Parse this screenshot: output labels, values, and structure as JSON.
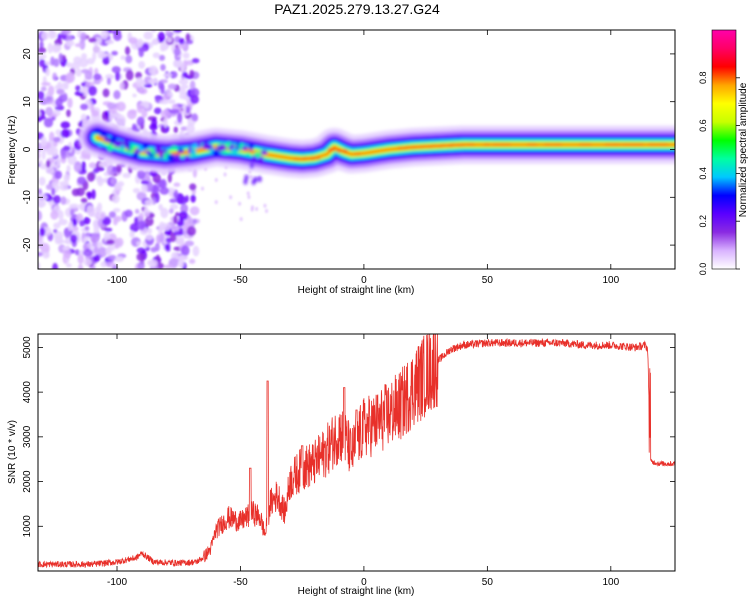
{
  "title": "PAZ1.2025.279.13.27.G24",
  "chart_data": [
    {
      "type": "heatmap",
      "title": "PAZ1.2025.279.13.27.G24",
      "xlabel": "Height of straight line (km)",
      "ylabel": "Frequency (Hz)",
      "xlim": [
        -132,
        126
      ],
      "ylim": [
        -25,
        25
      ],
      "x_ticks": [
        -100,
        -50,
        0,
        50,
        100
      ],
      "x_tick_labels": [
        "-100",
        "-50",
        "0",
        "50",
        "100"
      ],
      "y_ticks": [
        -20,
        -10,
        0,
        10,
        20
      ],
      "y_tick_labels": [
        "-20",
        "-10",
        "0",
        "10",
        "20"
      ],
      "grid": false,
      "colorbar": {
        "label": "Normalized spectral amplitude",
        "range": [
          0,
          1
        ],
        "ticks": [
          0.0,
          0.2,
          0.4,
          0.6,
          0.8
        ],
        "tick_labels": [
          "0.0",
          "0.2",
          "0.4",
          "0.6",
          "0.8"
        ],
        "colors": [
          "#ffffff",
          "#d9b3ff",
          "#8a2be2",
          "#5a00ff",
          "#0000ff",
          "#00c8ff",
          "#00ffa0",
          "#00ff00",
          "#c8ff00",
          "#ffff00",
          "#ffa500",
          "#ff0000",
          "#ff0066",
          "#ff00aa"
        ]
      },
      "ridge_frequency": {
        "x": [
          -108,
          -100,
          -90,
          -80,
          -70,
          -60,
          -50,
          -40,
          -30,
          -25,
          -20,
          -15,
          -12,
          -8,
          -5,
          0,
          10,
          20,
          40,
          60,
          80,
          100,
          126
        ],
        "y": [
          2.5,
          1,
          -0.5,
          -1,
          -0.5,
          0.5,
          0,
          -1,
          -1.8,
          -2,
          -1.8,
          -1,
          0.5,
          -0.5,
          -1,
          -0.8,
          0,
          0.5,
          1,
          1,
          1,
          1,
          1
        ]
      },
      "noise_region_x": [
        -132,
        -68
      ]
    },
    {
      "type": "line",
      "xlabel": "Height of straight line (km)",
      "ylabel": "SNR (10 * v/v)",
      "xlim": [
        -132,
        126
      ],
      "ylim": [
        0,
        5300
      ],
      "x_ticks": [
        -100,
        -50,
        0,
        50,
        100
      ],
      "x_tick_labels": [
        "-100",
        "-50",
        "0",
        "50",
        "100"
      ],
      "y_ticks": [
        1000,
        2000,
        3000,
        4000,
        5000
      ],
      "y_tick_labels": [
        "1000",
        "2000",
        "3000",
        "4000",
        "5000"
      ],
      "grid": false,
      "series": [
        {
          "name": "SNR",
          "color": "#e8302a",
          "x": [
            -132,
            -110,
            -100,
            -92,
            -90,
            -85,
            -75,
            -68,
            -65,
            -62,
            -60,
            -55,
            -50,
            -45,
            -42,
            -40,
            -38,
            -35,
            -32,
            -30,
            -25,
            -20,
            -15,
            -10,
            -7,
            -5,
            -3,
            0,
            5,
            10,
            15,
            20,
            25,
            30,
            35,
            40,
            50,
            60,
            70,
            80,
            90,
            100,
            110,
            114,
            115,
            116,
            120,
            126
          ],
          "y": [
            150,
            150,
            200,
            300,
            400,
            200,
            180,
            200,
            300,
            500,
            900,
            1200,
            1100,
            1300,
            1200,
            800,
            1500,
            1700,
            1300,
            2000,
            2300,
            2400,
            2700,
            3100,
            2900,
            2600,
            2900,
            3200,
            3300,
            3500,
            3700,
            4100,
            4400,
            4700,
            4950,
            5050,
            5100,
            5100,
            5100,
            5100,
            5050,
            5050,
            5000,
            5050,
            4950,
            2450,
            2400,
            2400
          ],
          "spikes": [
            {
              "x": -39,
              "y": 4250
            },
            {
              "x": -46,
              "y": 2300
            },
            {
              "x": -25,
              "y": 2800
            },
            {
              "x": -8,
              "y": 4100
            },
            {
              "x": -3,
              "y": 3600
            }
          ]
        }
      ]
    }
  ]
}
